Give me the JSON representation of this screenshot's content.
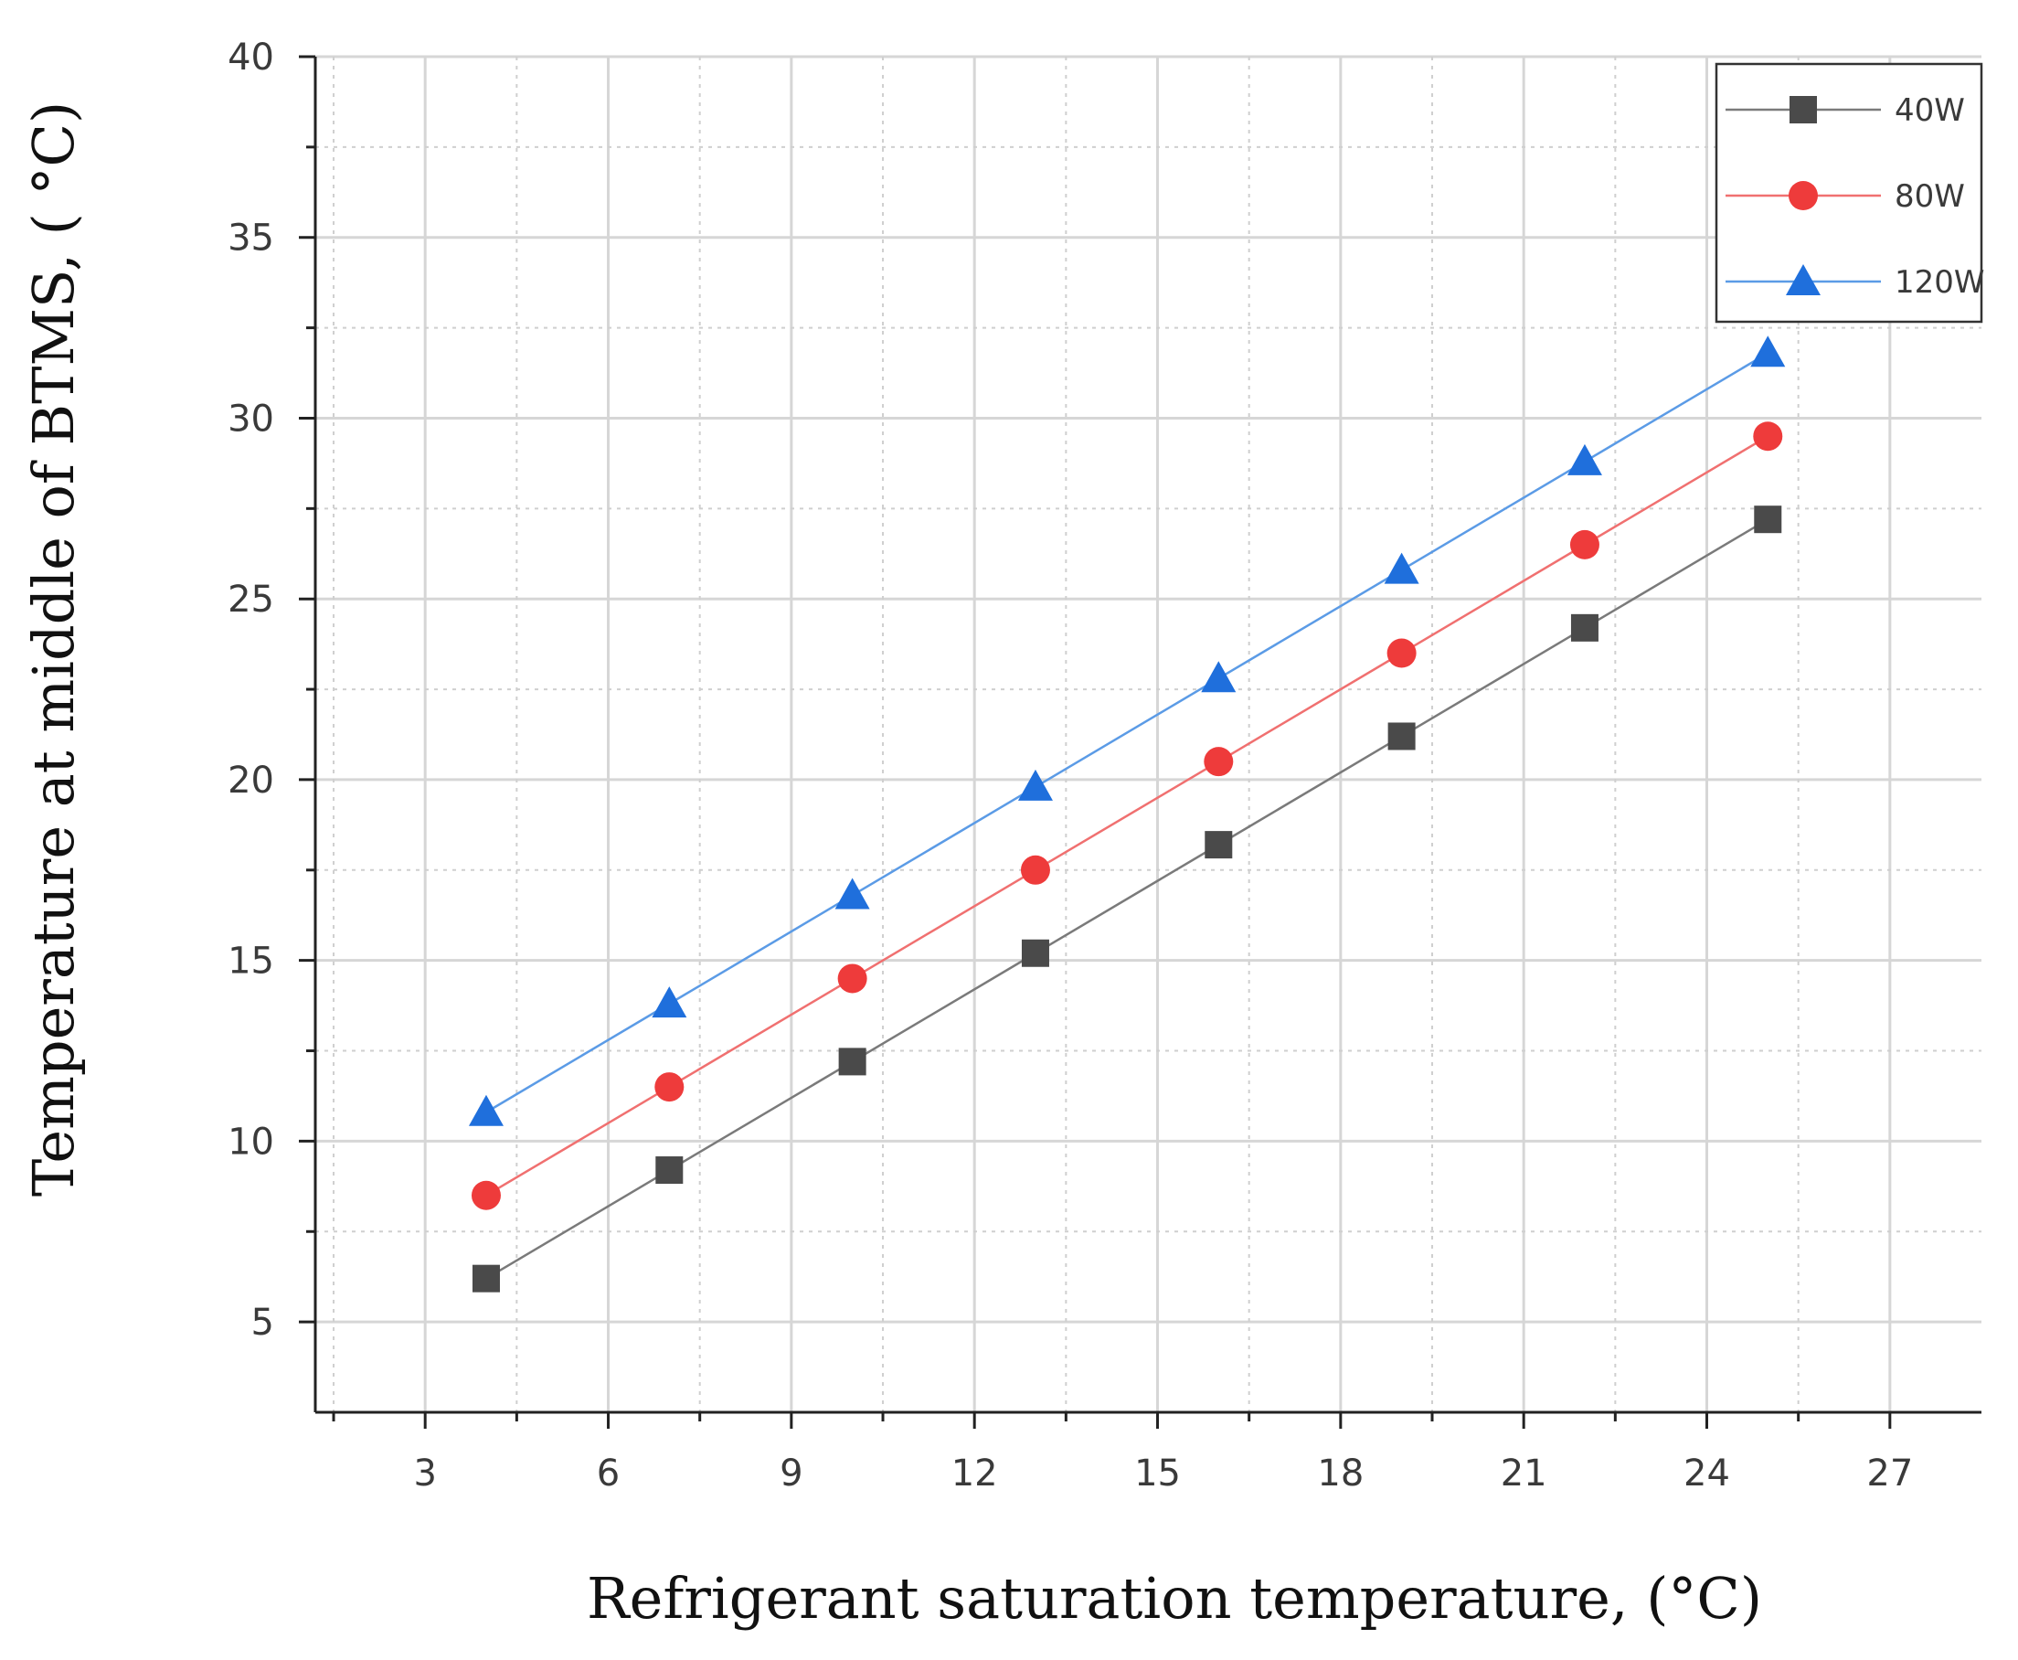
{
  "chart_data": {
    "type": "line",
    "title": "",
    "xlabel": "Refrigerant saturation temperature, (°C)",
    "ylabel": "Temperature at middle of BTMS, ( °C)",
    "xlim": [
      1.2,
      28.5
    ],
    "ylim": [
      2.5,
      40
    ],
    "xticks": [
      3,
      6,
      9,
      12,
      15,
      18,
      21,
      24,
      27
    ],
    "yticks": [
      5,
      10,
      15,
      20,
      25,
      30,
      35,
      40
    ],
    "x_tick_labels": [
      "3",
      "6",
      "9",
      "12",
      "15",
      "18",
      "21",
      "24",
      "27"
    ],
    "y_tick_labels": [
      "5",
      "10",
      "15",
      "20",
      "25",
      "30",
      "35",
      "40"
    ],
    "grid": true,
    "legend_position": "top-right",
    "x": [
      4,
      7,
      10,
      13,
      16,
      19,
      22,
      25
    ],
    "series": [
      {
        "name": "40W",
        "marker": "square",
        "color": "#4a4a4a",
        "line_color": "#7a7a7a",
        "values": [
          6.2,
          9.2,
          12.2,
          15.2,
          18.2,
          21.2,
          24.2,
          27.2
        ]
      },
      {
        "name": "80W",
        "marker": "circle",
        "color": "#ee3b3b",
        "line_color": "#f07070",
        "values": [
          8.5,
          11.5,
          14.5,
          17.5,
          20.5,
          23.5,
          26.5,
          29.5
        ]
      },
      {
        "name": "120W",
        "marker": "triangle",
        "color": "#1f6fdc",
        "line_color": "#5b9be6",
        "values": [
          10.8,
          13.8,
          16.8,
          19.8,
          22.8,
          25.8,
          28.8,
          31.8
        ]
      }
    ]
  }
}
